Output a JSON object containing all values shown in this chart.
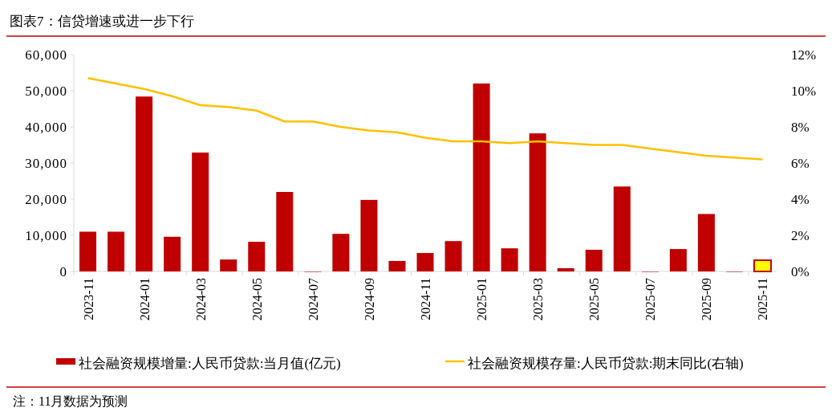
{
  "chart_data": {
    "type": "bar",
    "title": "图表7：信贷增速或进一步下行",
    "categories": [
      "2023-11",
      null,
      "2024-01",
      null,
      "2024-03",
      null,
      "2024-05",
      null,
      "2024-07",
      null,
      "2024-09",
      null,
      "2024-11",
      null,
      "2025-01",
      null,
      "2025-03",
      null,
      "2025-05",
      null,
      "2025-07",
      null,
      "2025-09",
      null,
      "2025-11"
    ],
    "series": [
      {
        "name": "社会融资规模增量:人民币贷款:当月值(亿元)",
        "color": "#c00000",
        "colors": [
          "#c00000",
          "#c00000",
          "#c00000",
          "#c00000",
          "#c00000",
          "#c00000",
          "#c00000",
          "#c00000",
          "#c00000",
          "#c00000",
          "#c00000",
          "#c00000",
          "#c00000",
          "#c00000",
          "#c00000",
          "#c00000",
          "#c00000",
          "#c00000",
          "#c00000",
          "#c00000",
          "#c00000",
          "#c00000",
          "#c00000",
          "#c00000",
          "#ffff00"
        ],
        "values": [
          11000,
          11000,
          48400,
          9600,
          32900,
          3300,
          8200,
          22000,
          0,
          10400,
          19800,
          2900,
          5100,
          8400,
          52000,
          6400,
          38200,
          900,
          6000,
          23500,
          0,
          6200,
          15900,
          0,
          3100
        ]
      },
      {
        "name": "社会融资规模存量:人民币贷款:期末同比(右轴)",
        "type": "line",
        "axis": "y2",
        "color": "#ffc000",
        "values": [
          10.7,
          10.4,
          10.1,
          9.7,
          9.2,
          9.1,
          8.9,
          8.3,
          8.3,
          8.0,
          7.8,
          7.7,
          7.4,
          7.2,
          7.2,
          7.1,
          7.2,
          7.1,
          7.0,
          7.0,
          6.8,
          6.6,
          6.4,
          6.3,
          6.2
        ]
      }
    ],
    "ylim": [
      0,
      60000
    ],
    "yticks": [
      0,
      {
        "value": 10000,
        "label": "10,000"
      },
      {
        "value": 20000,
        "label": "20,000"
      },
      {
        "value": 30000,
        "label": "30,000"
      },
      {
        "value": 40000,
        "label": "40,000"
      },
      {
        "value": 50000,
        "label": "50,000"
      },
      {
        "value": 60000,
        "label": "60,000"
      }
    ],
    "y2lim": [
      0,
      12
    ],
    "y2ticks": [
      {
        "value": 0,
        "label": "0%"
      },
      {
        "value": 2,
        "label": "2%"
      },
      {
        "value": 4,
        "label": "4%"
      },
      {
        "value": 6,
        "label": "6%"
      },
      {
        "value": 8,
        "label": "8%"
      },
      {
        "value": 10,
        "label": "10%"
      },
      {
        "value": 12,
        "label": "12%"
      }
    ],
    "legend": "bottom",
    "grid": false,
    "annotations": [
      "注：11月数据为预测"
    ]
  }
}
